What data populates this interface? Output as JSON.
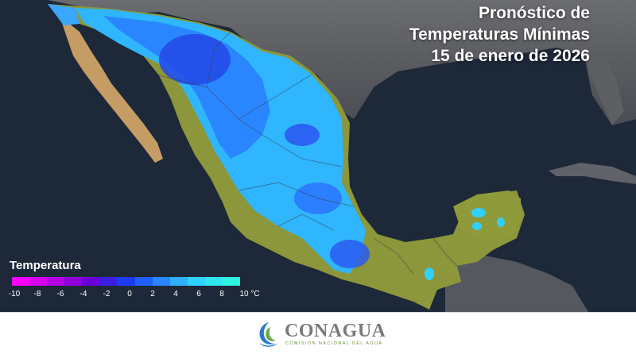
{
  "title": {
    "line1": "Pronóstico de",
    "line2": "Temperaturas Mínimas",
    "line3": "15 de enero de 2026"
  },
  "legend": {
    "title": "Temperatura",
    "ticks": [
      "-10",
      "-8",
      "-6",
      "-4",
      "-2",
      "0",
      "2",
      "4",
      "6",
      "8",
      "10 °C"
    ],
    "colors": [
      "#ff00ff",
      "#d600f0",
      "#b500e6",
      "#9000dc",
      "#6a00d8",
      "#3a1ee0",
      "#1a3cf0",
      "#1e60ff",
      "#2a86ff",
      "#2fb0ff",
      "#30d0ff",
      "#2fe6f0",
      "#2ff5e0"
    ]
  },
  "logo": {
    "name": "CONAGUA",
    "subtitle": "COMISIÓN NACIONAL DEL AGUA"
  },
  "colors": {
    "ocean": "#1c2738",
    "land_us": "#5a5c60",
    "cold_land": "#2a86ff",
    "warm_land": "#8f9a3a",
    "peninsula": "#c9a26a"
  }
}
